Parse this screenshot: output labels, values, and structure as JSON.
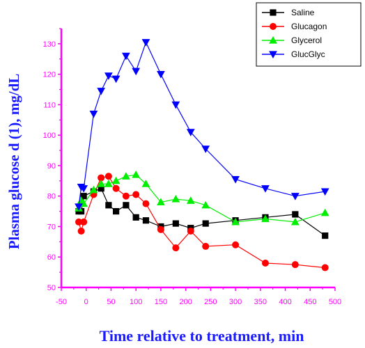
{
  "chart_data": {
    "type": "line",
    "xlabel": "Time relative to treatment, min",
    "ylabel": "Plasma glucose d (1), mg/dL",
    "xlim": [
      -50,
      500
    ],
    "ylim": [
      50,
      135
    ],
    "xticks": [
      -50,
      0,
      50,
      100,
      150,
      200,
      250,
      300,
      350,
      400,
      450,
      500
    ],
    "yticks": [
      50,
      60,
      70,
      80,
      90,
      100,
      110,
      120,
      130
    ],
    "grid": false,
    "legend_position": "top-right",
    "axis_color": "#ff00ff",
    "label_color": "#1a1aff",
    "series": [
      {
        "name": "Saline",
        "color": "#000000",
        "marker": "square",
        "x": [
          -15,
          -10,
          -5,
          15,
          30,
          45,
          60,
          80,
          100,
          120,
          150,
          180,
          210,
          240,
          300,
          360,
          420,
          480
        ],
        "y": [
          75,
          75,
          80,
          81.5,
          82.5,
          77,
          75,
          77,
          73,
          72,
          70,
          71,
          69.5,
          71,
          72,
          73,
          74,
          67
        ]
      },
      {
        "name": "Glucagon",
        "color": "#ff0000",
        "marker": "circle",
        "x": [
          -15,
          -10,
          -5,
          15,
          30,
          45,
          60,
          80,
          100,
          120,
          150,
          180,
          210,
          240,
          300,
          360,
          420,
          480
        ],
        "y": [
          71.5,
          68.5,
          71.5,
          80.5,
          86,
          86.5,
          82.5,
          80,
          80.5,
          77.5,
          69,
          63,
          68.5,
          63.5,
          64,
          58,
          57.5,
          56.5
        ]
      },
      {
        "name": "Glycerol",
        "color": "#00ee00",
        "marker": "triangle-up",
        "x": [
          -15,
          -10,
          -5,
          15,
          30,
          45,
          60,
          80,
          100,
          120,
          150,
          180,
          210,
          240,
          300,
          360,
          420,
          480
        ],
        "y": [
          76,
          78.5,
          77.5,
          82,
          84,
          84,
          85,
          86.5,
          87,
          84,
          78,
          79,
          78.5,
          77,
          71.5,
          72.5,
          71.5,
          74.5
        ]
      },
      {
        "name": "GlucGlyc",
        "color": "#0000ff",
        "marker": "triangle-down",
        "x": [
          -15,
          -10,
          -5,
          15,
          30,
          45,
          60,
          80,
          100,
          120,
          150,
          180,
          210,
          240,
          300,
          360,
          420,
          480
        ],
        "y": [
          76.5,
          83,
          82.5,
          107,
          114.5,
          119.5,
          118.5,
          126,
          121,
          130.5,
          120,
          110,
          101,
          95.5,
          85.5,
          82.5,
          80,
          81.5
        ]
      }
    ]
  }
}
